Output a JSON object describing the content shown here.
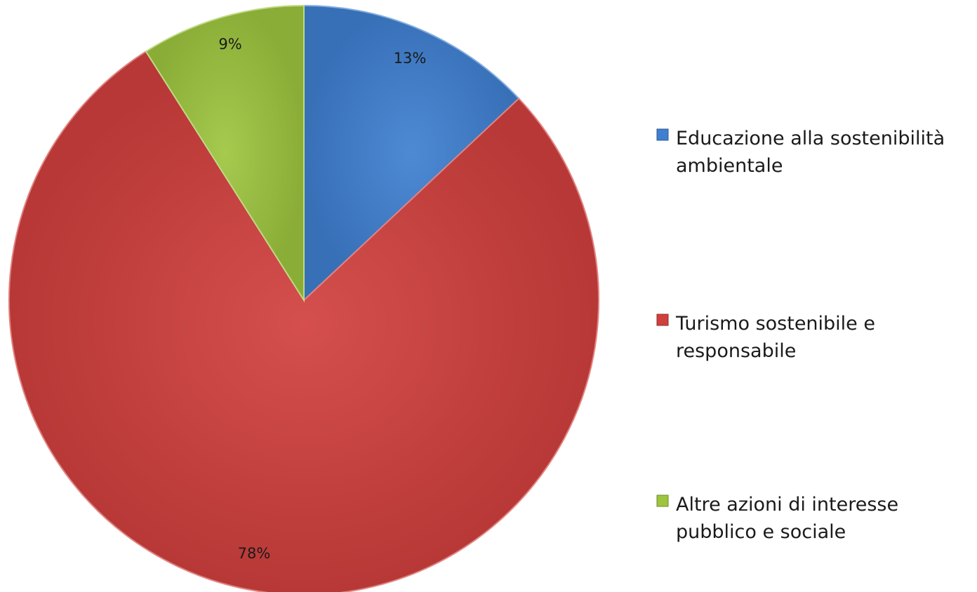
{
  "chart_data": {
    "type": "pie",
    "title": "",
    "legend_position": "right",
    "series": [
      {
        "values": [
          13,
          78,
          9
        ],
        "labels": [
          "13%",
          "78%",
          "9%"
        ]
      }
    ],
    "categories": [
      {
        "name": "Educazione alla sostenibilità ambientale",
        "lines": [
          "Educazione alla sostenibilità",
          "ambientale"
        ],
        "color": "#3f7fd0",
        "value": 13,
        "label": "13%"
      },
      {
        "name": "Turismo sostenibile e responsabile",
        "lines": [
          "Turismo sostenibile e",
          "responsabile"
        ],
        "color": "#d0403d",
        "value": 78,
        "label": "78%"
      },
      {
        "name": "Altre azioni di interesse pubblico e sociale",
        "lines": [
          "Altre azioni di interesse",
          "pubblico e sociale"
        ],
        "color": "#9dc53f",
        "value": 9,
        "label": "9%"
      }
    ],
    "start_angle": "12 o'clock",
    "direction": "clockwise"
  }
}
